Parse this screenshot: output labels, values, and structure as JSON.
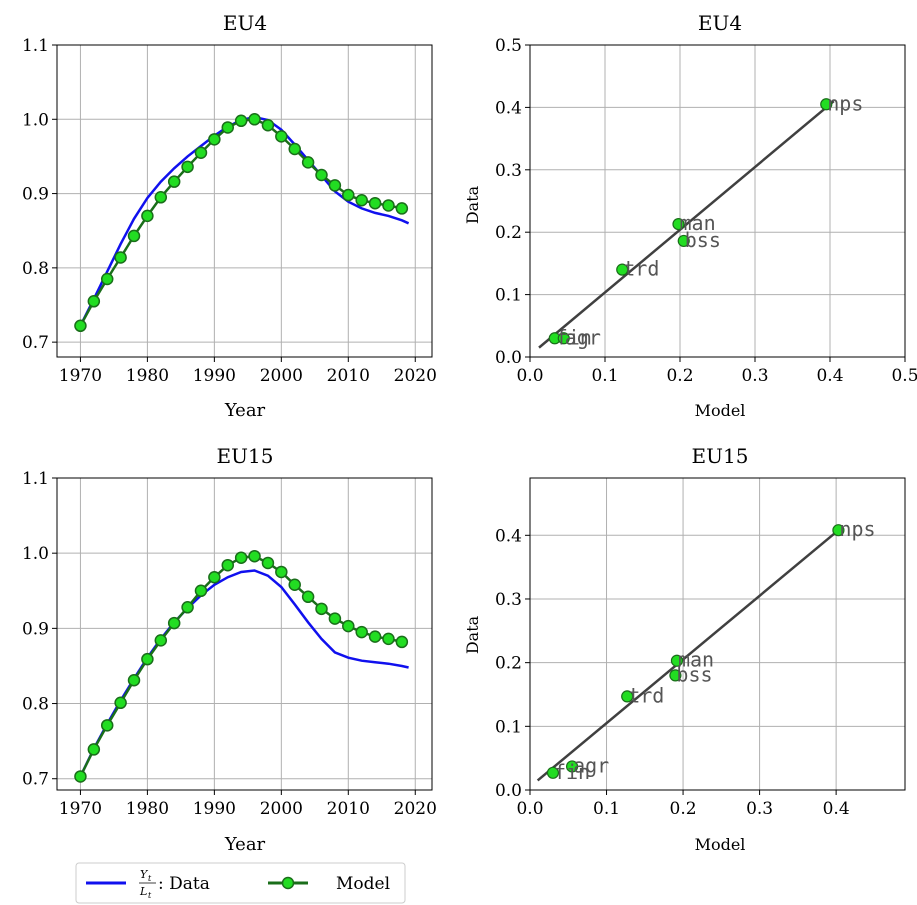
{
  "colors": {
    "data_line": "#1010ee",
    "model_line": "#1a6e1a",
    "marker_fill": "#22dd22",
    "marker_edge": "#1a6e1a",
    "fit_line": "#404040",
    "grid": "#b0b0b0"
  },
  "legend": {
    "data_label_math_num": "Y",
    "data_label_math_num_sub": "t",
    "data_label_math_den": "L",
    "data_label_math_den_sub": "t",
    "data_label_text": ": Data",
    "model_label": "Model"
  },
  "chart_data": [
    {
      "type": "line",
      "title": "EU4",
      "xlabel": "Year",
      "ylabel": "",
      "xlim": [
        1966.5,
        2022.5
      ],
      "ylim": [
        0.68,
        1.1
      ],
      "xticks": [
        1970,
        1980,
        1990,
        2000,
        2010,
        2020
      ],
      "yticks": [
        0.7,
        0.8,
        0.9,
        1.0,
        1.1
      ],
      "ytick_labels": [
        "0.7",
        "0.8",
        "0.9",
        "1.0",
        "1.1"
      ],
      "grid": true,
      "series": [
        {
          "name": "Data",
          "x": [
            1970,
            1972,
            1974,
            1976,
            1978,
            1980,
            1982,
            1984,
            1986,
            1988,
            1990,
            1992,
            1994,
            1996,
            1998,
            2000,
            2002,
            2004,
            2006,
            2008,
            2010,
            2012,
            2014,
            2016,
            2018,
            2019
          ],
          "values": [
            0.722,
            0.758,
            0.795,
            0.832,
            0.866,
            0.894,
            0.916,
            0.934,
            0.95,
            0.964,
            0.978,
            0.99,
            0.999,
            1.003,
            0.999,
            0.986,
            0.966,
            0.945,
            0.924,
            0.903,
            0.889,
            0.88,
            0.874,
            0.87,
            0.864,
            0.86
          ]
        },
        {
          "name": "Model",
          "x": [
            1970,
            1972,
            1974,
            1976,
            1978,
            1980,
            1982,
            1984,
            1986,
            1988,
            1990,
            1992,
            1994,
            1996,
            1998,
            2000,
            2002,
            2004,
            2006,
            2008,
            2010,
            2012,
            2014,
            2016,
            2018
          ],
          "values": [
            0.722,
            0.755,
            0.785,
            0.814,
            0.843,
            0.87,
            0.895,
            0.916,
            0.936,
            0.955,
            0.973,
            0.989,
            0.998,
            1.0,
            0.992,
            0.977,
            0.96,
            0.942,
            0.925,
            0.911,
            0.898,
            0.891,
            0.887,
            0.884,
            0.88
          ]
        }
      ]
    },
    {
      "type": "scatter",
      "title": "EU4",
      "xlabel": "Model",
      "ylabel": "Data",
      "xlim": [
        0.0,
        0.5
      ],
      "ylim": [
        0.0,
        0.5
      ],
      "xticks": [
        0.0,
        0.1,
        0.2,
        0.3,
        0.4,
        0.5
      ],
      "xtick_labels": [
        "0.0",
        "0.1",
        "0.2",
        "0.3",
        "0.4",
        "0.5"
      ],
      "yticks": [
        0.0,
        0.1,
        0.2,
        0.3,
        0.4,
        0.5
      ],
      "ytick_labels": [
        "0.0",
        "0.1",
        "0.2",
        "0.3",
        "0.4",
        "0.5"
      ],
      "grid": true,
      "fit_line": [
        [
          0.012,
          0.015
        ],
        [
          0.405,
          0.41
        ]
      ],
      "points": [
        {
          "label": "fin",
          "x": 0.033,
          "y": 0.03
        },
        {
          "label": "agr",
          "x": 0.045,
          "y": 0.03
        },
        {
          "label": "trd",
          "x": 0.123,
          "y": 0.14
        },
        {
          "label": "man",
          "x": 0.198,
          "y": 0.213
        },
        {
          "label": "bss",
          "x": 0.205,
          "y": 0.186
        },
        {
          "label": "nps",
          "x": 0.395,
          "y": 0.405
        }
      ]
    },
    {
      "type": "line",
      "title": "EU15",
      "xlabel": "Year",
      "ylabel": "",
      "xlim": [
        1966.5,
        2022.5
      ],
      "ylim": [
        0.685,
        1.1
      ],
      "xticks": [
        1970,
        1980,
        1990,
        2000,
        2010,
        2020
      ],
      "yticks": [
        0.7,
        0.8,
        0.9,
        1.0,
        1.1
      ],
      "ytick_labels": [
        "0.7",
        "0.8",
        "0.9",
        "1.0",
        "1.1"
      ],
      "grid": true,
      "series": [
        {
          "name": "Data",
          "x": [
            1970,
            1972,
            1974,
            1976,
            1978,
            1980,
            1982,
            1984,
            1986,
            1988,
            1990,
            1992,
            1994,
            1996,
            1998,
            2000,
            2002,
            2004,
            2006,
            2008,
            2010,
            2012,
            2014,
            2016,
            2018,
            2019
          ],
          "values": [
            0.703,
            0.74,
            0.773,
            0.804,
            0.833,
            0.861,
            0.886,
            0.908,
            0.927,
            0.944,
            0.958,
            0.968,
            0.975,
            0.977,
            0.97,
            0.955,
            0.932,
            0.908,
            0.886,
            0.868,
            0.861,
            0.857,
            0.855,
            0.853,
            0.85,
            0.848
          ]
        },
        {
          "name": "Model",
          "x": [
            1970,
            1972,
            1974,
            1976,
            1978,
            1980,
            1982,
            1984,
            1986,
            1988,
            1990,
            1992,
            1994,
            1996,
            1998,
            2000,
            2002,
            2004,
            2006,
            2008,
            2010,
            2012,
            2014,
            2016,
            2018
          ],
          "values": [
            0.703,
            0.739,
            0.771,
            0.801,
            0.831,
            0.859,
            0.884,
            0.907,
            0.928,
            0.95,
            0.968,
            0.984,
            0.994,
            0.996,
            0.987,
            0.975,
            0.958,
            0.942,
            0.926,
            0.913,
            0.903,
            0.895,
            0.889,
            0.886,
            0.882
          ]
        }
      ]
    },
    {
      "type": "scatter",
      "title": "EU15",
      "xlabel": "Model",
      "ylabel": "Data",
      "xlim": [
        0.0,
        0.49
      ],
      "ylim": [
        0.0,
        0.49
      ],
      "xticks": [
        0.0,
        0.1,
        0.2,
        0.3,
        0.4
      ],
      "xtick_labels": [
        "0.0",
        "0.1",
        "0.2",
        "0.3",
        "0.4"
      ],
      "yticks": [
        0.0,
        0.1,
        0.2,
        0.3,
        0.4
      ],
      "ytick_labels": [
        "0.0",
        "0.1",
        "0.2",
        "0.3",
        "0.4"
      ],
      "grid": true,
      "fit_line": [
        [
          0.01,
          0.015
        ],
        [
          0.405,
          0.41
        ]
      ],
      "points": [
        {
          "label": "fin",
          "x": 0.03,
          "y": 0.027
        },
        {
          "label": "agr",
          "x": 0.055,
          "y": 0.037
        },
        {
          "label": "trd",
          "x": 0.127,
          "y": 0.147
        },
        {
          "label": "man",
          "x": 0.192,
          "y": 0.203
        },
        {
          "label": "bss",
          "x": 0.19,
          "y": 0.18
        },
        {
          "label": "nps",
          "x": 0.403,
          "y": 0.408
        }
      ]
    }
  ]
}
